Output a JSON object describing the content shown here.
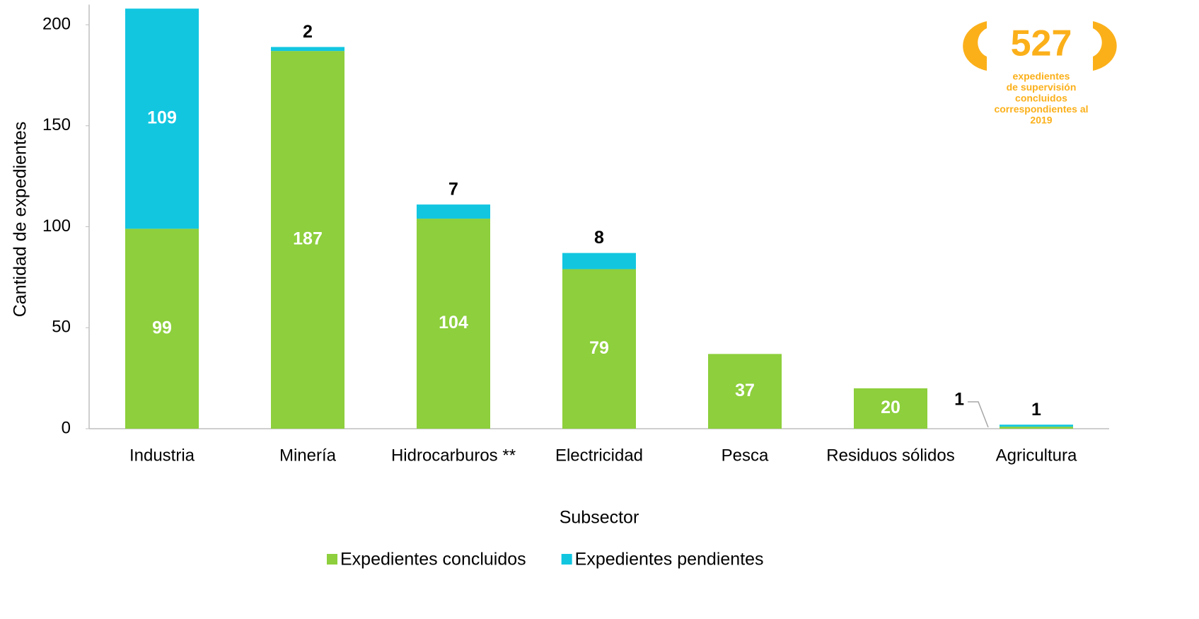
{
  "chart_data": {
    "type": "stacked_bar",
    "x_label": "Subsector",
    "y_label": "Cantidad de expedientes",
    "categories": [
      "Industria",
      "Minería",
      "Hidrocarburos **",
      "Electricidad",
      "Pesca",
      "Residuos sólidos",
      "Agricultura"
    ],
    "series": [
      {
        "name": "Expedientes concluidos",
        "color": "#8dcf3c",
        "values": [
          99,
          187,
          104,
          79,
          37,
          20,
          1
        ]
      },
      {
        "name": "Expedientes pendientes",
        "color": "#12c6e0",
        "values": [
          109,
          2,
          7,
          8,
          null,
          null,
          1
        ]
      }
    ],
    "ylim": [
      0,
      210
    ],
    "yticks": [
      0,
      50,
      100,
      150,
      200
    ],
    "grid": false,
    "legend": "bottom",
    "badge": {
      "number": 527,
      "color": "#fbb01a",
      "lines": [
        "expedientes",
        "de supervisión",
        "concluidos",
        "correspondientes al",
        "2019"
      ]
    }
  }
}
